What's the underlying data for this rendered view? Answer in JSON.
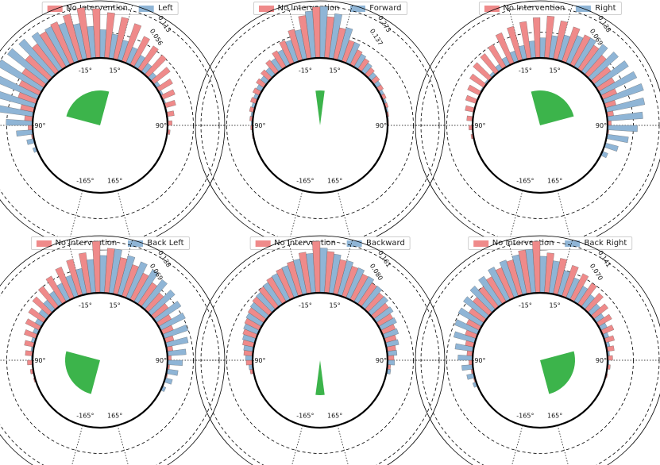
{
  "colors": {
    "no_intervention": "#ef8a8a",
    "intervention": "#8fb5d6",
    "wedge": "#3cb44b"
  },
  "chart_data": [
    {
      "type": "polar-bar",
      "legend": [
        "No Intervention",
        "Left"
      ],
      "tick_labels": [
        "-15°",
        "15°",
        "-90°",
        "90°",
        "-165°",
        "165°"
      ],
      "r_labels": [
        "0.113",
        "0.056"
      ],
      "r_max": 0.113,
      "bin_width_deg": 7.5,
      "wedge_deg": [
        -75,
        15
      ],
      "bins_deg": [
        -112.5,
        -105,
        -97.5,
        -90,
        -82.5,
        -75,
        -67.5,
        -60,
        -52.5,
        -45,
        -37.5,
        -30,
        -22.5,
        -15,
        -7.5,
        0,
        7.5,
        15,
        22.5,
        30,
        37.5,
        45,
        52.5,
        60,
        67.5,
        75,
        82.5,
        90,
        97.5
      ],
      "no_intervention": [
        0,
        0,
        0.004,
        0.01,
        0.018,
        0.03,
        0.042,
        0.05,
        0.058,
        0.07,
        0.078,
        0.09,
        0.098,
        0.105,
        0.113,
        0.108,
        0.1,
        0.094,
        0.088,
        0.07,
        0.062,
        0.058,
        0.046,
        0.036,
        0.03,
        0.024,
        0.016,
        0.01,
        0.006
      ],
      "intervention": [
        0.008,
        0.016,
        0.036,
        0.058,
        0.08,
        0.095,
        0.105,
        0.112,
        0.108,
        0.104,
        0.098,
        0.094,
        0.09,
        0.08,
        0.07,
        0.062,
        0.054,
        0.046,
        0.038,
        0.03,
        0.024,
        0.016,
        0.01,
        0.006,
        0.004,
        0.002,
        0.002,
        0.001,
        0
      ]
    },
    {
      "type": "polar-bar",
      "legend": [
        "No Intervention",
        "Forward"
      ],
      "tick_labels": [
        "-15°",
        "15°",
        "-90°",
        "90°",
        "-165°",
        "165°"
      ],
      "r_labels": [
        "0.273",
        "0.137"
      ],
      "r_max": 0.273,
      "bin_width_deg": 7.5,
      "wedge_deg": [
        -7.5,
        7.5
      ],
      "bins_deg": [
        -97.5,
        -90,
        -82.5,
        -75,
        -67.5,
        -60,
        -52.5,
        -45,
        -37.5,
        -30,
        -22.5,
        -15,
        -7.5,
        0,
        7.5,
        15,
        22.5,
        30,
        37.5,
        45,
        52.5,
        60,
        67.5,
        75,
        82.5,
        90,
        97.5
      ],
      "no_intervention": [
        0.006,
        0.01,
        0.016,
        0.024,
        0.032,
        0.04,
        0.05,
        0.06,
        0.08,
        0.1,
        0.13,
        0.17,
        0.23,
        0.27,
        0.22,
        0.17,
        0.12,
        0.09,
        0.07,
        0.05,
        0.04,
        0.03,
        0.022,
        0.016,
        0.01,
        0.006,
        0.004
      ],
      "intervention": [
        0.004,
        0.008,
        0.012,
        0.018,
        0.024,
        0.032,
        0.04,
        0.05,
        0.07,
        0.09,
        0.12,
        0.16,
        0.25,
        0.273,
        0.24,
        0.18,
        0.12,
        0.08,
        0.06,
        0.04,
        0.03,
        0.02,
        0.014,
        0.01,
        0.006,
        0.004,
        0.002
      ]
    },
    {
      "type": "polar-bar",
      "legend": [
        "No Intervention",
        "Right"
      ],
      "tick_labels": [
        "-15°",
        "15°",
        "-90°",
        "90°",
        "-165°",
        "165°"
      ],
      "r_labels": [
        "0.138",
        "0.069"
      ],
      "r_max": 0.138,
      "bin_width_deg": 7.5,
      "wedge_deg": [
        -15,
        75
      ],
      "bins_deg": [
        -97.5,
        -90,
        -82.5,
        -75,
        -67.5,
        -60,
        -52.5,
        -45,
        -37.5,
        -30,
        -22.5,
        -15,
        -7.5,
        0,
        7.5,
        15,
        22.5,
        30,
        37.5,
        45,
        52.5,
        60,
        67.5,
        75,
        82.5,
        90,
        97.5,
        105,
        112.5
      ],
      "no_intervention": [
        0.006,
        0.01,
        0.016,
        0.024,
        0.03,
        0.036,
        0.046,
        0.058,
        0.062,
        0.07,
        0.088,
        0.094,
        0.1,
        0.108,
        0.113,
        0.105,
        0.098,
        0.09,
        0.078,
        0.07,
        0.058,
        0.05,
        0.042,
        0.03,
        0.018,
        0.01,
        0.004,
        0,
        0
      ],
      "intervention": [
        0,
        0,
        0,
        0,
        0.002,
        0.004,
        0.006,
        0.01,
        0.016,
        0.024,
        0.03,
        0.038,
        0.046,
        0.054,
        0.062,
        0.07,
        0.08,
        0.09,
        0.094,
        0.098,
        0.104,
        0.108,
        0.112,
        0.105,
        0.095,
        0.08,
        0.058,
        0.036,
        0.016
      ]
    },
    {
      "type": "polar-bar",
      "legend": [
        "No Intervention",
        "Back Left"
      ],
      "tick_labels": [
        "-15°",
        "15°",
        "-90°",
        "90°",
        "-165°",
        "165°"
      ],
      "r_labels": [
        "0.138",
        "0.069"
      ],
      "r_max": 0.138,
      "bin_width_deg": 7.5,
      "wedge_deg": [
        -165,
        -75
      ],
      "bins_deg": [
        -105,
        -97.5,
        -90,
        -82.5,
        -75,
        -67.5,
        -60,
        -52.5,
        -45,
        -37.5,
        -30,
        -22.5,
        -15,
        -7.5,
        0,
        7.5,
        15,
        22.5,
        30,
        37.5,
        45,
        52.5,
        60,
        67.5,
        75,
        82.5,
        90,
        97.5,
        105,
        112.5
      ],
      "no_intervention": [
        0.004,
        0.008,
        0.014,
        0.02,
        0.026,
        0.034,
        0.042,
        0.05,
        0.06,
        0.07,
        0.08,
        0.09,
        0.1,
        0.11,
        0.138,
        0.12,
        0.1,
        0.09,
        0.08,
        0.07,
        0.06,
        0.05,
        0.04,
        0.032,
        0.024,
        0.016,
        0.01,
        0.006,
        0.004,
        0.002
      ],
      "intervention": [
        0,
        0.002,
        0.004,
        0.006,
        0.01,
        0.014,
        0.02,
        0.026,
        0.034,
        0.042,
        0.05,
        0.06,
        0.07,
        0.09,
        0.1,
        0.12,
        0.11,
        0.105,
        0.1,
        0.092,
        0.086,
        0.08,
        0.074,
        0.068,
        0.06,
        0.05,
        0.04,
        0.03,
        0.02,
        0.01
      ]
    },
    {
      "type": "polar-bar",
      "legend": [
        "No Intervention",
        "Backward"
      ],
      "tick_labels": [
        "-15°",
        "15°",
        "-90°",
        "90°",
        "-165°",
        "165°"
      ],
      "r_labels": [
        "0.161",
        "0.080"
      ],
      "r_max": 0.161,
      "bin_width_deg": 7.5,
      "wedge_deg": [
        -172.5,
        -187.5
      ],
      "bins_deg": [
        -97.5,
        -90,
        -82.5,
        -75,
        -67.5,
        -60,
        -52.5,
        -45,
        -37.5,
        -30,
        -22.5,
        -15,
        -7.5,
        0,
        7.5,
        15,
        22.5,
        30,
        37.5,
        45,
        52.5,
        60,
        67.5,
        75,
        82.5,
        90,
        97.5
      ],
      "no_intervention": [
        0.01,
        0.02,
        0.028,
        0.036,
        0.044,
        0.052,
        0.06,
        0.07,
        0.08,
        0.09,
        0.1,
        0.11,
        0.13,
        0.161,
        0.13,
        0.11,
        0.1,
        0.09,
        0.08,
        0.07,
        0.06,
        0.052,
        0.044,
        0.036,
        0.028,
        0.02,
        0.01
      ],
      "intervention": [
        0.012,
        0.022,
        0.03,
        0.04,
        0.048,
        0.056,
        0.064,
        0.072,
        0.082,
        0.092,
        0.102,
        0.112,
        0.124,
        0.14,
        0.124,
        0.112,
        0.102,
        0.092,
        0.082,
        0.072,
        0.064,
        0.056,
        0.048,
        0.04,
        0.03,
        0.022,
        0.012
      ]
    },
    {
      "type": "polar-bar",
      "legend": [
        "No Intervention",
        "Back Right"
      ],
      "tick_labels": [
        "-15°",
        "15°",
        "-90°",
        "90°",
        "-165°",
        "165°"
      ],
      "r_labels": [
        "0.141",
        "0.070"
      ],
      "r_max": 0.141,
      "bin_width_deg": 7.5,
      "wedge_deg": [
        75,
        165
      ],
      "bins_deg": [
        -112.5,
        -105,
        -97.5,
        -90,
        -82.5,
        -75,
        -67.5,
        -60,
        -52.5,
        -45,
        -37.5,
        -30,
        -22.5,
        -15,
        -7.5,
        0,
        7.5,
        15,
        22.5,
        30,
        37.5,
        45,
        52.5,
        60,
        67.5,
        75,
        82.5,
        90,
        97.5,
        105
      ],
      "no_intervention": [
        0.002,
        0.004,
        0.006,
        0.01,
        0.016,
        0.024,
        0.032,
        0.04,
        0.05,
        0.06,
        0.07,
        0.08,
        0.09,
        0.1,
        0.12,
        0.141,
        0.11,
        0.1,
        0.09,
        0.08,
        0.07,
        0.06,
        0.05,
        0.042,
        0.034,
        0.026,
        0.02,
        0.014,
        0.008,
        0.004
      ],
      "intervention": [
        0.01,
        0.02,
        0.03,
        0.04,
        0.05,
        0.06,
        0.068,
        0.074,
        0.08,
        0.086,
        0.092,
        0.1,
        0.105,
        0.11,
        0.12,
        0.1,
        0.09,
        0.07,
        0.06,
        0.05,
        0.042,
        0.034,
        0.026,
        0.02,
        0.014,
        0.01,
        0.006,
        0.004,
        0.002,
        0
      ]
    }
  ]
}
